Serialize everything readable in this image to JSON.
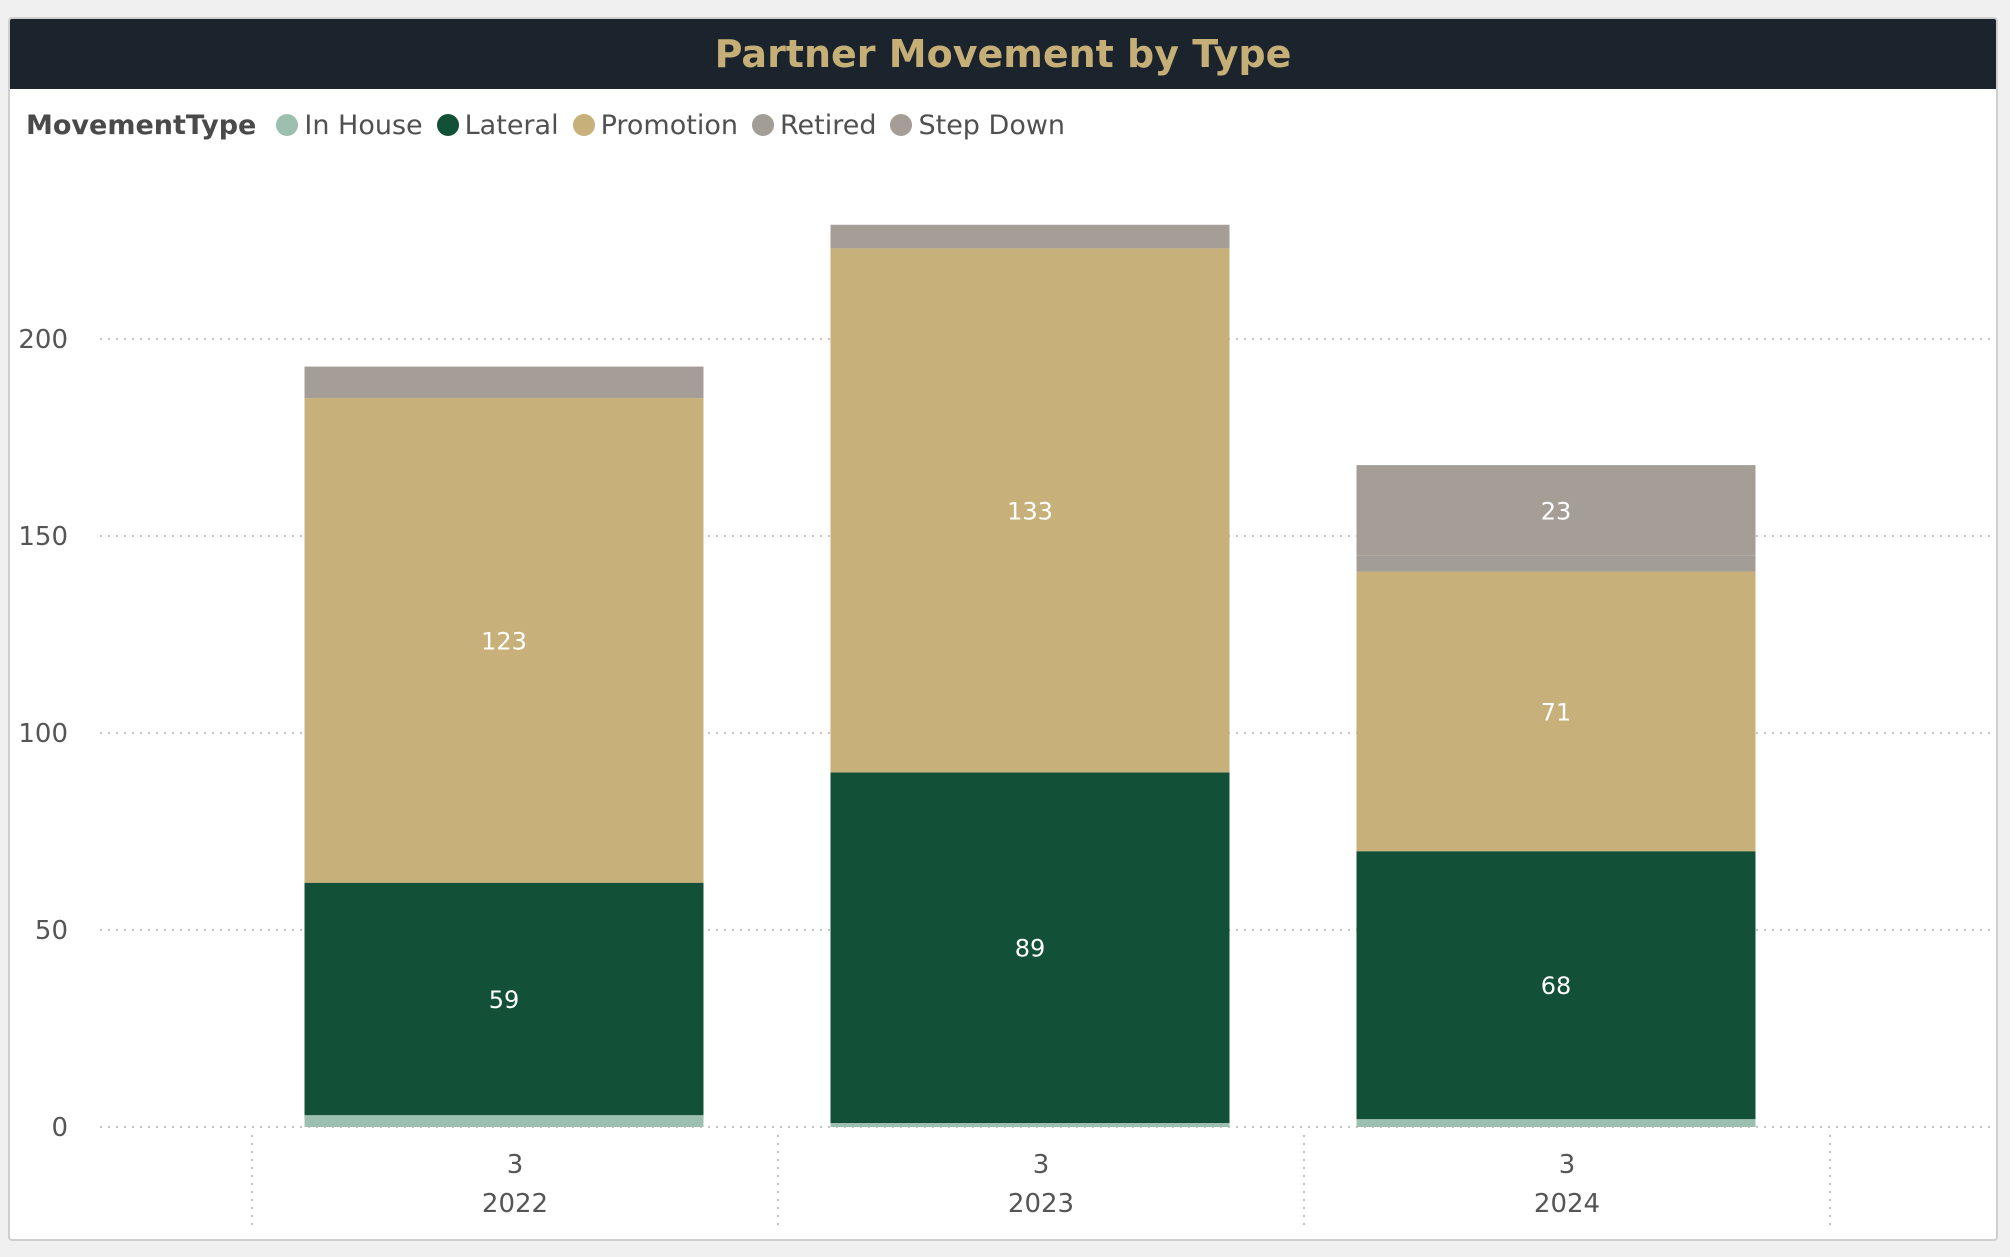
{
  "chart_data": {
    "type": "bar",
    "stacked": true,
    "title": "Partner Movement by Type",
    "legend_title": "MovementType",
    "legend_position": "top-left",
    "categories": [
      "2022",
      "2023",
      "2024"
    ],
    "category_sublabels": [
      "3",
      "3",
      "3"
    ],
    "ylim": [
      0,
      230
    ],
    "yticks": [
      0,
      50,
      100,
      150,
      200
    ],
    "grid": true,
    "series": [
      {
        "name": "In House",
        "color": "#9dbfb0",
        "values": [
          3,
          1,
          2
        ],
        "labels": [
          "",
          "",
          ""
        ]
      },
      {
        "name": "Lateral",
        "color": "#125138",
        "values": [
          59,
          89,
          68
        ],
        "labels": [
          "59",
          "89",
          "68"
        ]
      },
      {
        "name": "Promotion",
        "color": "#c7b07a",
        "values": [
          123,
          133,
          71
        ],
        "labels": [
          "123",
          "133",
          "71"
        ]
      },
      {
        "name": "Retired",
        "color": "#a29d97",
        "values": [
          0,
          0,
          4
        ],
        "labels": [
          "",
          "",
          ""
        ]
      },
      {
        "name": "Step Down",
        "color": "#a49e97",
        "values": [
          8,
          6,
          23
        ],
        "labels": [
          "",
          "",
          "23"
        ]
      }
    ]
  }
}
